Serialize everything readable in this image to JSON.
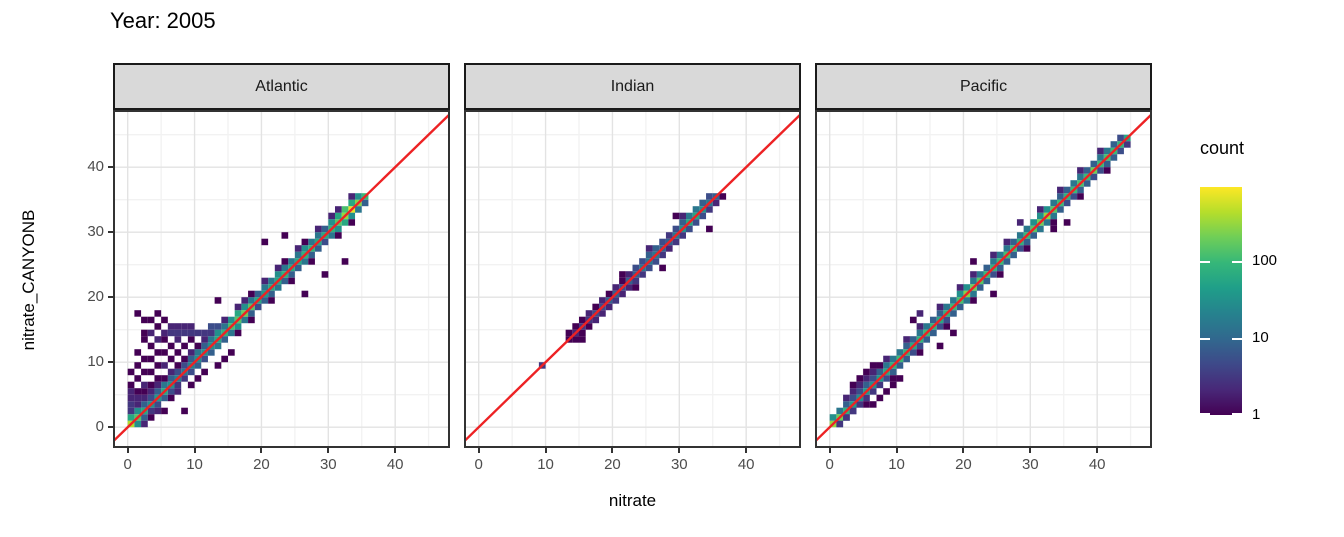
{
  "title": "Year: 2005",
  "axes": {
    "x_title": "nitrate",
    "y_title": "nitrate_CANYONB",
    "x_ticks": [
      0,
      10,
      20,
      30,
      40
    ],
    "y_ticks": [
      0,
      10,
      20,
      30,
      40
    ],
    "minor_ticks": [
      5,
      15,
      25,
      35,
      45
    ],
    "xlim": [
      -2.2,
      48.2
    ],
    "ylim": [
      -3.2,
      48.8
    ]
  },
  "legend": {
    "title": "count",
    "labels": [
      "100",
      "10",
      "1"
    ],
    "label_values": [
      100,
      10,
      1
    ],
    "max_value": 900
  },
  "colors": {
    "viridis": [
      "#440154",
      "#482878",
      "#3e4989",
      "#31688e",
      "#26828e",
      "#1f9e89",
      "#35b779",
      "#6ece58",
      "#b5de2b",
      "#fde725"
    ],
    "identity_line": "#ed2224",
    "panel_border": "#333333",
    "grid_major": "#e3e3e3",
    "grid_minor": "#f2f2f2",
    "strip_fill": "#d9d9d9",
    "axis_text": "#4d4d4d",
    "tick_mark": "#333333"
  },
  "chart_data": {
    "type": "heatmap",
    "subtype": "bin2d_faceted_scatter_density",
    "bin_size": 1,
    "count_scale": "log10",
    "identity_line": {
      "equation": "y = x",
      "color": "red"
    },
    "facets": [
      {
        "label": "Atlantic",
        "bands": [
          {
            "offset": 0,
            "start": 0,
            "counts": [
              400,
              150,
              60,
              30,
              40,
              60,
              30,
              20,
              15,
              20,
              30,
              30,
              30,
              60,
              80,
              120,
              150,
              200,
              150,
              60,
              40,
              60,
              60,
              80,
              60,
              60,
              80,
              80,
              60,
              60,
              80,
              150,
              300,
              700,
              250,
              100
            ]
          },
          {
            "offset": 1,
            "start": 0,
            "counts": [
              60,
              30,
              8,
              5,
              8,
              15,
              8,
              5,
              5,
              8,
              15,
              8,
              15,
              30,
              15,
              30,
              60,
              30,
              15,
              8,
              15,
              15,
              30,
              15,
              15,
              15,
              30,
              15,
              15,
              8,
              30,
              60,
              120,
              60,
              30
            ]
          },
          {
            "offset": -1,
            "start": 1,
            "counts": [
              30,
              8,
              3,
              5,
              8,
              5,
              3,
              3,
              5,
              8,
              5,
              8,
              15,
              8,
              15,
              30,
              15,
              8,
              5,
              8,
              8,
              15,
              8,
              8,
              8,
              15,
              8,
              8,
              5,
              15,
              30,
              60,
              30,
              15,
              8
            ]
          }
        ],
        "extra_bins": [
          [
            12,
            14,
            3
          ],
          [
            14,
            16,
            2
          ],
          [
            16,
            18,
            2
          ],
          [
            17,
            19,
            2
          ],
          [
            18,
            20,
            1
          ],
          [
            20,
            22,
            2
          ],
          [
            22,
            24,
            2
          ],
          [
            23,
            25,
            1
          ],
          [
            25,
            27,
            2
          ],
          [
            26,
            28,
            1
          ],
          [
            28,
            30,
            2
          ],
          [
            30,
            32,
            2
          ],
          [
            31,
            33,
            2
          ],
          [
            33,
            35,
            2
          ],
          [
            16,
            14,
            1
          ],
          [
            18,
            16,
            1
          ],
          [
            21,
            19,
            1
          ],
          [
            24,
            22,
            1
          ],
          [
            27,
            25,
            1
          ],
          [
            31,
            29,
            1
          ],
          [
            33,
            31,
            1
          ],
          [
            0,
            2,
            3
          ],
          [
            0,
            3,
            3
          ],
          [
            0,
            4,
            2
          ],
          [
            0,
            5,
            2
          ],
          [
            0,
            6,
            1
          ],
          [
            0,
            8,
            1
          ],
          [
            1,
            3,
            2
          ],
          [
            1,
            4,
            2
          ],
          [
            1,
            5,
            1
          ],
          [
            1,
            7,
            1
          ],
          [
            1,
            9,
            1
          ],
          [
            1,
            11,
            1
          ],
          [
            1,
            17,
            1
          ],
          [
            2,
            4,
            2
          ],
          [
            2,
            5,
            1
          ],
          [
            2,
            6,
            2
          ],
          [
            2,
            8,
            1
          ],
          [
            2,
            10,
            1
          ],
          [
            2,
            13,
            1
          ],
          [
            2,
            14,
            1
          ],
          [
            2,
            16,
            1
          ],
          [
            3,
            5,
            2
          ],
          [
            3,
            6,
            1
          ],
          [
            3,
            8,
            1
          ],
          [
            3,
            10,
            1
          ],
          [
            3,
            12,
            1
          ],
          [
            3,
            14,
            2
          ],
          [
            3,
            16,
            1
          ],
          [
            4,
            6,
            2
          ],
          [
            4,
            7,
            1
          ],
          [
            4,
            9,
            1
          ],
          [
            4,
            11,
            1
          ],
          [
            4,
            13,
            2
          ],
          [
            4,
            15,
            1
          ],
          [
            4,
            17,
            1
          ],
          [
            5,
            7,
            1
          ],
          [
            5,
            9,
            2
          ],
          [
            5,
            11,
            1
          ],
          [
            5,
            13,
            1
          ],
          [
            5,
            14,
            2
          ],
          [
            5,
            16,
            1
          ],
          [
            6,
            8,
            2
          ],
          [
            6,
            10,
            1
          ],
          [
            6,
            12,
            1
          ],
          [
            6,
            14,
            3
          ],
          [
            6,
            15,
            2
          ],
          [
            7,
            9,
            1
          ],
          [
            7,
            11,
            1
          ],
          [
            7,
            13,
            2
          ],
          [
            7,
            14,
            3
          ],
          [
            7,
            15,
            2
          ],
          [
            8,
            10,
            1
          ],
          [
            8,
            12,
            1
          ],
          [
            8,
            14,
            3
          ],
          [
            8,
            15,
            2
          ],
          [
            9,
            11,
            2
          ],
          [
            9,
            13,
            1
          ],
          [
            9,
            14,
            3
          ],
          [
            9,
            15,
            2
          ],
          [
            10,
            12,
            1
          ],
          [
            10,
            14,
            3
          ],
          [
            11,
            13,
            2
          ],
          [
            11,
            14,
            3
          ],
          [
            12,
            15,
            5
          ],
          [
            13,
            15,
            5
          ],
          [
            13,
            19,
            1
          ],
          [
            2,
            0,
            2
          ],
          [
            3,
            1,
            1
          ],
          [
            4,
            2,
            2
          ],
          [
            5,
            2,
            1
          ],
          [
            6,
            4,
            1
          ],
          [
            7,
            5,
            2
          ],
          [
            8,
            2,
            1
          ],
          [
            9,
            6,
            1
          ],
          [
            10,
            7,
            1
          ],
          [
            11,
            8,
            1
          ],
          [
            13,
            9,
            1
          ],
          [
            14,
            10,
            1
          ],
          [
            15,
            11,
            1
          ],
          [
            20,
            28,
            1
          ],
          [
            23,
            29,
            1
          ],
          [
            26,
            20,
            1
          ],
          [
            29,
            23,
            1
          ],
          [
            32,
            25,
            1
          ]
        ]
      },
      {
        "label": "Indian",
        "bands": [
          {
            "offset": 0,
            "start": 13,
            "counts": [
              1,
              2,
              3,
              3,
              5,
              5,
              8,
              8,
              5,
              8,
              8,
              15,
              15,
              15,
              8,
              8,
              15,
              30,
              60,
              60,
              30,
              15,
              8
            ]
          },
          {
            "offset": 1,
            "start": 13,
            "counts": [
              1,
              1,
              1,
              2,
              1,
              2,
              1,
              2,
              1,
              2,
              5,
              5,
              8,
              8,
              5,
              3,
              5,
              8,
              15,
              15,
              8,
              5
            ]
          },
          {
            "offset": -1,
            "start": 14,
            "counts": [
              1,
              1,
              1,
              2,
              2,
              2,
              3,
              2,
              2,
              3,
              3,
              5,
              5,
              3,
              2,
              3,
              3,
              5,
              5,
              5,
              3,
              2
            ]
          }
        ],
        "extra_bins": [
          [
            9,
            9,
            3
          ],
          [
            15,
            13,
            1
          ],
          [
            23,
            21,
            1
          ],
          [
            27,
            24,
            1
          ],
          [
            29,
            32,
            1
          ],
          [
            34,
            30,
            1
          ],
          [
            36,
            35,
            1
          ],
          [
            25,
            27,
            2
          ],
          [
            21,
            23,
            1
          ],
          [
            30,
            32,
            2
          ]
        ]
      },
      {
        "label": "Pacific",
        "bands": [
          {
            "offset": 0,
            "start": 0,
            "counts": [
              300,
              200,
              80,
              40,
              30,
              40,
              30,
              40,
              60,
              80,
              100,
              80,
              60,
              80,
              100,
              80,
              60,
              80,
              100,
              120,
              250,
              200,
              150,
              100,
              80,
              100,
              120,
              100,
              80,
              100,
              150,
              200,
              300,
              150,
              100,
              80,
              100,
              120,
              100,
              200,
              100,
              120,
              100,
              80,
              60
            ]
          },
          {
            "offset": 1,
            "start": 0,
            "counts": [
              30,
              15,
              8,
              5,
              5,
              8,
              5,
              8,
              15,
              15,
              15,
              8,
              8,
              15,
              15,
              8,
              8,
              15,
              15,
              30,
              30,
              15,
              15,
              8,
              15,
              15,
              15,
              8,
              15,
              15,
              30,
              30,
              30,
              15,
              8,
              8,
              15,
              15,
              8,
              8,
              15,
              15,
              8,
              5
            ]
          },
          {
            "offset": -1,
            "start": 1,
            "counts": [
              15,
              8,
              3,
              3,
              3,
              3,
              3,
              5,
              8,
              8,
              8,
              5,
              5,
              8,
              8,
              5,
              5,
              8,
              8,
              15,
              15,
              8,
              8,
              5,
              8,
              8,
              8,
              5,
              8,
              8,
              15,
              15,
              15,
              8,
              5,
              5,
              8,
              8,
              5,
              5,
              8,
              8,
              5,
              3
            ]
          }
        ],
        "extra_bins": [
          [
            3,
            5,
            2
          ],
          [
            5,
            7,
            2
          ],
          [
            8,
            10,
            2
          ],
          [
            11,
            13,
            2
          ],
          [
            13,
            15,
            2
          ],
          [
            16,
            18,
            2
          ],
          [
            19,
            21,
            2
          ],
          [
            21,
            23,
            2
          ],
          [
            24,
            26,
            2
          ],
          [
            26,
            28,
            2
          ],
          [
            28,
            31,
            2
          ],
          [
            31,
            33,
            2
          ],
          [
            34,
            36,
            2
          ],
          [
            37,
            39,
            2
          ],
          [
            40,
            42,
            2
          ],
          [
            5,
            3,
            1
          ],
          [
            9,
            7,
            1
          ],
          [
            13,
            11,
            1
          ],
          [
            17,
            15,
            1
          ],
          [
            21,
            19,
            1
          ],
          [
            25,
            23,
            1
          ],
          [
            29,
            27,
            1
          ],
          [
            33,
            31,
            1
          ],
          [
            37,
            35,
            1
          ],
          [
            41,
            39,
            1
          ],
          [
            2,
            4,
            2
          ],
          [
            3,
            6,
            1
          ],
          [
            4,
            6,
            2
          ],
          [
            4,
            7,
            1
          ],
          [
            5,
            8,
            1
          ],
          [
            6,
            8,
            2
          ],
          [
            6,
            9,
            1
          ],
          [
            7,
            9,
            1
          ],
          [
            7,
            4,
            1
          ],
          [
            8,
            5,
            1
          ],
          [
            9,
            6,
            1
          ],
          [
            10,
            7,
            1
          ],
          [
            6,
            3,
            1
          ],
          [
            1,
            0,
            3
          ],
          [
            2,
            1,
            3
          ],
          [
            3,
            2,
            3
          ],
          [
            12,
            16,
            1
          ],
          [
            13,
            17,
            2
          ],
          [
            18,
            14,
            1
          ],
          [
            21,
            25,
            1
          ],
          [
            24,
            20,
            1
          ],
          [
            33,
            30,
            1
          ],
          [
            35,
            31,
            1
          ],
          [
            16,
            12,
            1
          ]
        ]
      }
    ]
  }
}
